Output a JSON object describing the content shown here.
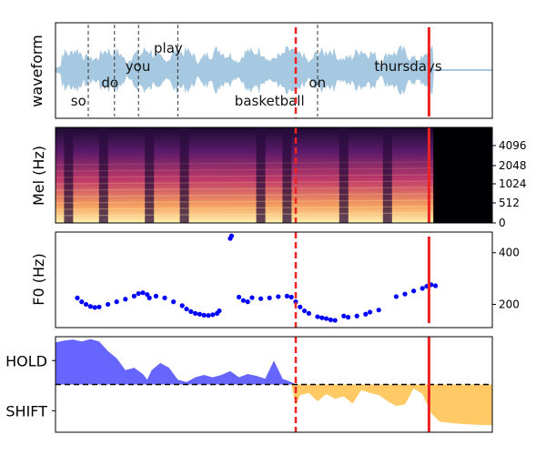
{
  "colors": {
    "waveform": "#a6c8e0",
    "f0": "#0000ff",
    "hold": "#6666ff",
    "shift": "#ffc966",
    "red_line": "#ee2222",
    "frame": "#000000"
  },
  "chart_data": [
    {
      "type": "area",
      "ylabel": "waveform",
      "words": [
        {
          "text": "so",
          "x": 0.035,
          "level": "low"
        },
        {
          "text": "do",
          "x": 0.105,
          "level": "mid"
        },
        {
          "text": "you",
          "x": 0.16,
          "level": "high"
        },
        {
          "text": "play",
          "x": 0.225,
          "level": "top"
        },
        {
          "text": "basketball",
          "x": 0.41,
          "level": "low"
        },
        {
          "text": "on",
          "x": 0.58,
          "level": "mid"
        },
        {
          "text": "thursdays",
          "x": 0.73,
          "level": "high"
        }
      ],
      "word_boundaries": [
        0.075,
        0.135,
        0.19,
        0.28,
        0.6
      ],
      "red_dashed_x": 0.55,
      "red_solid_x": 0.855,
      "speech_end_x": 0.865
    },
    {
      "type": "heatmap",
      "ylabel": "Mel (Hz)",
      "yticks": [
        "0",
        "512",
        "1024",
        "2048",
        "4096"
      ],
      "red_dashed_x": 0.55,
      "red_solid_x": 0.855,
      "silence_start_x": 0.865
    },
    {
      "type": "scatter",
      "ylabel": "F0 (Hz)",
      "yticks": [
        200,
        400
      ],
      "ylim": [
        110,
        480
      ],
      "points": [
        [
          0.05,
          225
        ],
        [
          0.06,
          210
        ],
        [
          0.07,
          200
        ],
        [
          0.08,
          192
        ],
        [
          0.09,
          188
        ],
        [
          0.1,
          190
        ],
        [
          0.12,
          200
        ],
        [
          0.14,
          210
        ],
        [
          0.16,
          220
        ],
        [
          0.18,
          232
        ],
        [
          0.19,
          242
        ],
        [
          0.2,
          245
        ],
        [
          0.21,
          238
        ],
        [
          0.215,
          225
        ],
        [
          0.23,
          232
        ],
        [
          0.25,
          225
        ],
        [
          0.27,
          210
        ],
        [
          0.29,
          195
        ],
        [
          0.3,
          182
        ],
        [
          0.31,
          172
        ],
        [
          0.32,
          165
        ],
        [
          0.33,
          162
        ],
        [
          0.34,
          158
        ],
        [
          0.35,
          157
        ],
        [
          0.36,
          160
        ],
        [
          0.37,
          165
        ],
        [
          0.375,
          175
        ],
        [
          0.4,
          455
        ],
        [
          0.403,
          465
        ],
        [
          0.42,
          228
        ],
        [
          0.43,
          215
        ],
        [
          0.44,
          210
        ],
        [
          0.45,
          226
        ],
        [
          0.47,
          222
        ],
        [
          0.49,
          225
        ],
        [
          0.51,
          230
        ],
        [
          0.53,
          232
        ],
        [
          0.54,
          228
        ],
        [
          0.55,
          210
        ],
        [
          0.56,
          190
        ],
        [
          0.57,
          175
        ],
        [
          0.58,
          165
        ],
        [
          0.6,
          152
        ],
        [
          0.61,
          148
        ],
        [
          0.62,
          145
        ],
        [
          0.63,
          140
        ],
        [
          0.64,
          138
        ],
        [
          0.66,
          155
        ],
        [
          0.67,
          150
        ],
        [
          0.69,
          155
        ],
        [
          0.71,
          162
        ],
        [
          0.72,
          170
        ],
        [
          0.74,
          178
        ],
        [
          0.78,
          230
        ],
        [
          0.8,
          240
        ],
        [
          0.82,
          252
        ],
        [
          0.84,
          262
        ],
        [
          0.85,
          270
        ],
        [
          0.86,
          276
        ],
        [
          0.87,
          272
        ]
      ],
      "red_dashed_x": 0.55,
      "red_solid_x": 0.855
    },
    {
      "type": "area",
      "yticks": [
        "HOLD",
        "SHIFT"
      ],
      "ylim": [
        -1,
        1
      ],
      "threshold": 0,
      "series": [
        {
          "x": [
            0,
            0.02,
            0.04,
            0.06,
            0.08,
            0.1,
            0.12,
            0.14,
            0.16,
            0.18,
            0.2,
            0.21,
            0.22,
            0.24,
            0.26,
            0.28,
            0.3,
            0.32,
            0.34,
            0.36,
            0.38,
            0.4,
            0.42,
            0.44,
            0.46,
            0.48,
            0.5,
            0.52,
            0.54,
            0.55,
            0.56,
            0.58,
            0.6,
            0.62,
            0.64,
            0.66,
            0.68,
            0.7,
            0.72,
            0.74,
            0.76,
            0.78,
            0.8,
            0.82,
            0.84,
            0.86,
            0.88,
            0.9,
            0.92,
            0.94,
            0.96,
            0.98,
            1.0
          ],
          "values": [
            0.88,
            0.92,
            0.94,
            0.9,
            0.95,
            0.9,
            0.7,
            0.55,
            0.3,
            0.35,
            0.22,
            0.1,
            0.3,
            0.45,
            0.35,
            0.1,
            0.05,
            0.15,
            0.2,
            0.15,
            0.2,
            0.28,
            0.15,
            0.22,
            0.18,
            0.12,
            0.5,
            0.12,
            0.05,
            -0.45,
            -0.22,
            -0.18,
            -0.35,
            -0.2,
            -0.3,
            -0.25,
            -0.4,
            -0.12,
            -0.18,
            -0.22,
            -0.35,
            -0.45,
            -0.42,
            -0.08,
            -0.2,
            -0.6,
            -0.78,
            -0.8,
            -0.82,
            -0.83,
            -0.84,
            -0.85,
            -0.85
          ]
        }
      ],
      "red_dashed_x": 0.55,
      "red_solid_x": 0.855
    }
  ]
}
